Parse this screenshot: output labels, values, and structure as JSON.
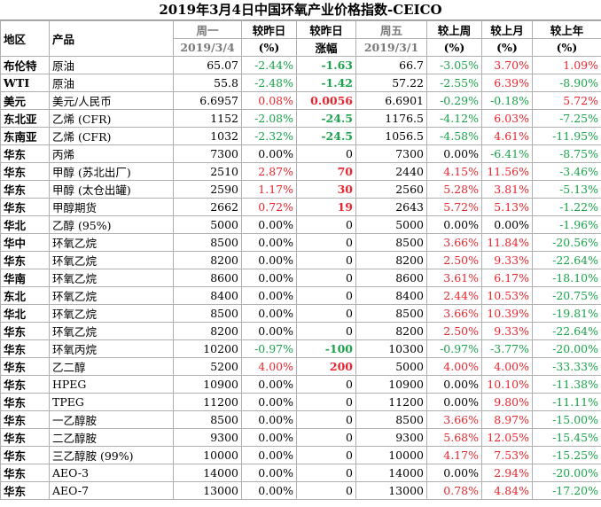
{
  "title": "2019年3月4日中国环氧产业价格指数-CEICO",
  "header": {
    "region": "地区",
    "product": "产品",
    "mon": "周一",
    "mon_date": "2019/3/4",
    "vs_yday": "较昨日",
    "vs_yday_unit": "(%)",
    "vs_yday2": "较昨日",
    "change": "涨幅",
    "fri": "周五",
    "fri_date": "2019/3/1",
    "vs_lastweek": "较上周",
    "vs_lastweek_unit": "(%)",
    "vs_lastmonth": "较上月",
    "vs_lastmonth_unit": "(%)",
    "vs_lastyear": "较上年",
    "vs_lastyear_unit": "(%)"
  },
  "rows": [
    {
      "region": "布伦特",
      "product": "原油",
      "mon": "65.07",
      "pct_d": "-2.44%",
      "chg": "-1.63",
      "fri": "66.7",
      "pct_w": "-3.05%",
      "pct_m": "3.70%",
      "pct_y": "1.09%"
    },
    {
      "region": "WTI",
      "product": "原油",
      "mon": "55.8",
      "pct_d": "-2.48%",
      "chg": "-1.42",
      "fri": "57.22",
      "pct_w": "-2.55%",
      "pct_m": "6.39%",
      "pct_y": "-8.90%"
    },
    {
      "region": "美元",
      "product": "美元/人民币",
      "mon": "6.6957",
      "pct_d": "0.08%",
      "chg": "0.0056",
      "fri": "6.6901",
      "pct_w": "-0.29%",
      "pct_m": "-0.18%",
      "pct_y": "5.72%"
    },
    {
      "region": "东北亚",
      "product": "乙烯 (CFR)",
      "mon": "1152",
      "pct_d": "-2.08%",
      "chg": "-24.5",
      "fri": "1176.5",
      "pct_w": "-4.12%",
      "pct_m": "6.03%",
      "pct_y": "-7.25%"
    },
    {
      "region": "东南亚",
      "product": "乙烯 (CFR)",
      "mon": "1032",
      "pct_d": "-2.32%",
      "chg": "-24.5",
      "fri": "1056.5",
      "pct_w": "-4.58%",
      "pct_m": "4.61%",
      "pct_y": "-11.95%"
    },
    {
      "region": "华东",
      "product": "丙烯",
      "mon": "7300",
      "pct_d": "0.00%",
      "chg": "0",
      "fri": "7300",
      "pct_w": "0.00%",
      "pct_m": "-6.41%",
      "pct_y": "-8.75%"
    },
    {
      "region": "华东",
      "product": "甲醇 (苏北出厂)",
      "mon": "2510",
      "pct_d": "2.87%",
      "chg": "70",
      "fri": "2440",
      "pct_w": "4.15%",
      "pct_m": "11.56%",
      "pct_y": "-3.46%"
    },
    {
      "region": "华东",
      "product": "甲醇 (太仓出罐)",
      "mon": "2590",
      "pct_d": "1.17%",
      "chg": "30",
      "fri": "2560",
      "pct_w": "5.28%",
      "pct_m": "3.81%",
      "pct_y": "-5.13%"
    },
    {
      "region": "华东",
      "product": "甲醇期货",
      "mon": "2662",
      "pct_d": "0.72%",
      "chg": "19",
      "fri": "2643",
      "pct_w": "5.72%",
      "pct_m": "5.13%",
      "pct_y": "-1.22%"
    },
    {
      "region": "华北",
      "product": "乙醇 (95%)",
      "mon": "5000",
      "pct_d": "0.00%",
      "chg": "0",
      "fri": "5000",
      "pct_w": "0.00%",
      "pct_m": "0.00%",
      "pct_y": "-1.96%"
    },
    {
      "region": "华中",
      "product": "环氧乙烷",
      "mon": "8500",
      "pct_d": "0.00%",
      "chg": "0",
      "fri": "8500",
      "pct_w": "3.66%",
      "pct_m": "11.84%",
      "pct_y": "-20.56%"
    },
    {
      "region": "华东",
      "product": "环氧乙烷",
      "mon": "8200",
      "pct_d": "0.00%",
      "chg": "0",
      "fri": "8200",
      "pct_w": "2.50%",
      "pct_m": "9.33%",
      "pct_y": "-22.64%"
    },
    {
      "region": "华南",
      "product": "环氧乙烷",
      "mon": "8600",
      "pct_d": "0.00%",
      "chg": "0",
      "fri": "8600",
      "pct_w": "3.61%",
      "pct_m": "6.17%",
      "pct_y": "-18.10%"
    },
    {
      "region": "东北",
      "product": "环氧乙烷",
      "mon": "8400",
      "pct_d": "0.00%",
      "chg": "0",
      "fri": "8400",
      "pct_w": "2.44%",
      "pct_m": "10.53%",
      "pct_y": "-20.75%"
    },
    {
      "region": "华北",
      "product": "环氧乙烷",
      "mon": "8500",
      "pct_d": "0.00%",
      "chg": "0",
      "fri": "8500",
      "pct_w": "3.66%",
      "pct_m": "10.39%",
      "pct_y": "-19.81%"
    },
    {
      "region": "华东",
      "product": "环氧乙烷",
      "mon": "8200",
      "pct_d": "0.00%",
      "chg": "0",
      "fri": "8200",
      "pct_w": "2.50%",
      "pct_m": "9.33%",
      "pct_y": "-22.64%"
    },
    {
      "region": "华东",
      "product": "环氧丙烷",
      "mon": "10200",
      "pct_d": "-0.97%",
      "chg": "-100",
      "fri": "10300",
      "pct_w": "-0.97%",
      "pct_m": "-3.77%",
      "pct_y": "-20.00%"
    },
    {
      "region": "华东",
      "product": "乙二醇",
      "mon": "5200",
      "pct_d": "4.00%",
      "chg": "200",
      "fri": "5000",
      "pct_w": "4.00%",
      "pct_m": "4.00%",
      "pct_y": "-33.33%"
    },
    {
      "region": "华东",
      "product": "HPEG",
      "mon": "10900",
      "pct_d": "0.00%",
      "chg": "0",
      "fri": "10900",
      "pct_w": "0.00%",
      "pct_m": "10.10%",
      "pct_y": "-11.38%"
    },
    {
      "region": "华东",
      "product": "TPEG",
      "mon": "11200",
      "pct_d": "0.00%",
      "chg": "0",
      "fri": "11200",
      "pct_w": "0.00%",
      "pct_m": "9.80%",
      "pct_y": "-11.11%"
    },
    {
      "region": "华东",
      "product": "一乙醇胺",
      "mon": "8500",
      "pct_d": "0.00%",
      "chg": "0",
      "fri": "8500",
      "pct_w": "3.66%",
      "pct_m": "8.97%",
      "pct_y": "-15.00%"
    },
    {
      "region": "华东",
      "product": "二乙醇胺",
      "mon": "9300",
      "pct_d": "0.00%",
      "chg": "0",
      "fri": "9300",
      "pct_w": "5.68%",
      "pct_m": "12.05%",
      "pct_y": "-15.45%"
    },
    {
      "region": "华东",
      "product": "三乙醇胺 (99%)",
      "mon": "10000",
      "pct_d": "0.00%",
      "chg": "0",
      "fri": "10000",
      "pct_w": "4.17%",
      "pct_m": "7.53%",
      "pct_y": "-15.25%"
    },
    {
      "region": "华东",
      "product": "AEO-3",
      "mon": "14000",
      "pct_d": "0.00%",
      "chg": "0",
      "fri": "14000",
      "pct_w": "0.00%",
      "pct_m": "2.94%",
      "pct_y": "-20.00%"
    },
    {
      "region": "华东",
      "product": "AEO-7",
      "mon": "13000",
      "pct_d": "0.00%",
      "chg": "0",
      "fri": "13000",
      "pct_w": "0.78%",
      "pct_m": "4.84%",
      "pct_y": "-17.20%"
    }
  ],
  "colors": {
    "negative": "#1aa34a",
    "positive": "#e8262f",
    "neutral": "#000000"
  }
}
